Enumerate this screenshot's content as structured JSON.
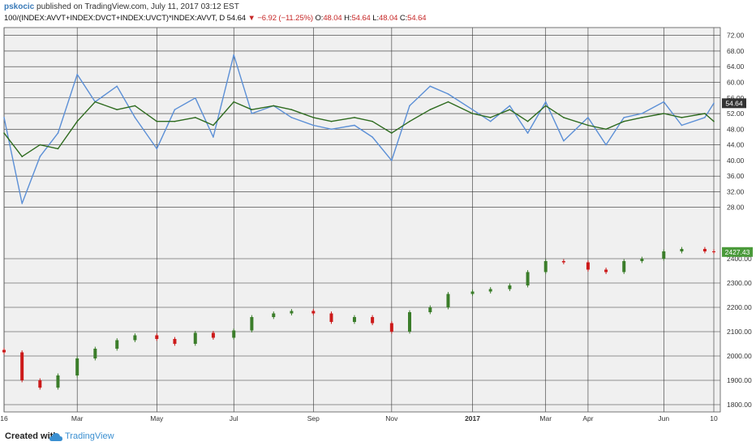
{
  "header": {
    "author": "pskocic",
    "published_text": " published on TradingView.com, July 11, 2017 03:12 EST",
    "symbol": "100/(INDEX:AVVT+INDEX:DVCT+INDEX:UVCT)*INDEX:AVVT, D",
    "last": "54.64",
    "change": "−6.92 (−11.25%)",
    "o_label": "O:",
    "o_value": "48.04",
    "h_label": "H:",
    "h_value": "54.64",
    "l_label": "L:",
    "l_value": "48.04",
    "c_label": "C:",
    "c_value": "54.64"
  },
  "footer": {
    "created_label": "Created with",
    "brand": "TradingView"
  },
  "colors": {
    "background": "#f0f0f0",
    "grid": "#333333",
    "blue_line": "#5b8fd6",
    "green_line": "#2e6b1f",
    "candle_up": "#3b7d2a",
    "candle_down": "#cc1a1a",
    "last_price_bg_top": "#333333",
    "last_price_bg_bottom": "#4a9a3a"
  },
  "chart_data": [
    {
      "type": "line",
      "panel": "upper",
      "x": [
        "2016-01-04",
        "2016-01-18",
        "2016-02-01",
        "2016-02-15",
        "2016-03-01",
        "2016-03-15",
        "2016-04-01",
        "2016-04-15",
        "2016-05-02",
        "2016-05-16",
        "2016-06-01",
        "2016-06-15",
        "2016-07-01",
        "2016-07-15",
        "2016-08-01",
        "2016-08-15",
        "2016-09-01",
        "2016-09-15",
        "2016-10-03",
        "2016-10-17",
        "2016-11-01",
        "2016-11-15",
        "2016-12-01",
        "2016-12-15",
        "2017-01-03",
        "2017-01-17",
        "2017-02-01",
        "2017-02-15",
        "2017-03-01",
        "2017-03-15",
        "2017-04-03",
        "2017-04-17",
        "2017-05-01",
        "2017-05-15",
        "2017-06-01",
        "2017-06-15",
        "2017-07-03",
        "2017-07-10"
      ],
      "series": [
        {
          "values": [
            51,
            29,
            41,
            47,
            62,
            55,
            59,
            51,
            43,
            53,
            56,
            46,
            67,
            52,
            54,
            51,
            49,
            48,
            49,
            46,
            40,
            54,
            59,
            57,
            53,
            50,
            54,
            47,
            55,
            45,
            51,
            44,
            51,
            52,
            55,
            49,
            51,
            54.64
          ]
        },
        {
          "values": [
            47,
            41,
            44,
            43,
            50,
            55,
            53,
            54,
            50,
            50,
            51,
            49,
            55,
            53,
            54,
            53,
            51,
            50,
            51,
            50,
            47,
            50,
            53,
            55,
            52,
            51,
            53,
            50,
            54,
            51,
            49,
            48,
            50,
            51,
            52,
            51,
            52,
            50
          ]
        }
      ],
      "ylim": [
        24,
        74
      ],
      "ticks": [
        "72.00",
        "68.00",
        "64.00",
        "60.00",
        "56.00",
        "52.00",
        "48.00",
        "44.00",
        "40.00",
        "36.00",
        "32.00",
        "28.00"
      ],
      "last_label": "54.64"
    },
    {
      "type": "candlestick",
      "panel": "lower",
      "x": [
        "2016-01-04",
        "2016-01-18",
        "2016-02-01",
        "2016-02-15",
        "2016-03-01",
        "2016-03-15",
        "2016-04-01",
        "2016-04-15",
        "2016-05-02",
        "2016-05-16",
        "2016-06-01",
        "2016-06-15",
        "2016-07-01",
        "2016-07-15",
        "2016-08-01",
        "2016-08-15",
        "2016-09-01",
        "2016-09-15",
        "2016-10-03",
        "2016-10-17",
        "2016-11-01",
        "2016-11-15",
        "2016-12-01",
        "2016-12-15",
        "2017-01-03",
        "2017-01-17",
        "2017-02-01",
        "2017-02-15",
        "2017-03-01",
        "2017-03-15",
        "2017-04-03",
        "2017-04-17",
        "2017-05-01",
        "2017-05-15",
        "2017-06-01",
        "2017-06-15",
        "2017-07-03",
        "2017-07-10"
      ],
      "close": [
        2015,
        1900,
        1870,
        1920,
        1990,
        2030,
        2065,
        2085,
        2070,
        2050,
        2095,
        2075,
        2105,
        2160,
        2175,
        2185,
        2175,
        2140,
        2160,
        2135,
        2100,
        2180,
        2200,
        2255,
        2265,
        2275,
        2290,
        2345,
        2390,
        2385,
        2355,
        2345,
        2390,
        2400,
        2430,
        2440,
        2430,
        2427.43
      ],
      "ylim": [
        1770,
        2480
      ],
      "ticks": [
        "2400.00",
        "2300.00",
        "2200.00",
        "2100.00",
        "2000.00",
        "1900.00",
        "1800.00"
      ],
      "last_label": "2427.43"
    }
  ],
  "x_axis": {
    "labels": [
      "16",
      "Mar",
      "May",
      "Jul",
      "Sep",
      "Nov",
      "2017",
      "Mar",
      "Apr",
      "Jun",
      "10"
    ],
    "label_dates": [
      "2016-01-04",
      "2016-03-01",
      "2016-05-02",
      "2016-07-01",
      "2016-09-01",
      "2016-11-01",
      "2017-01-03",
      "2017-03-01",
      "2017-04-03",
      "2017-06-01",
      "2017-07-10"
    ]
  }
}
